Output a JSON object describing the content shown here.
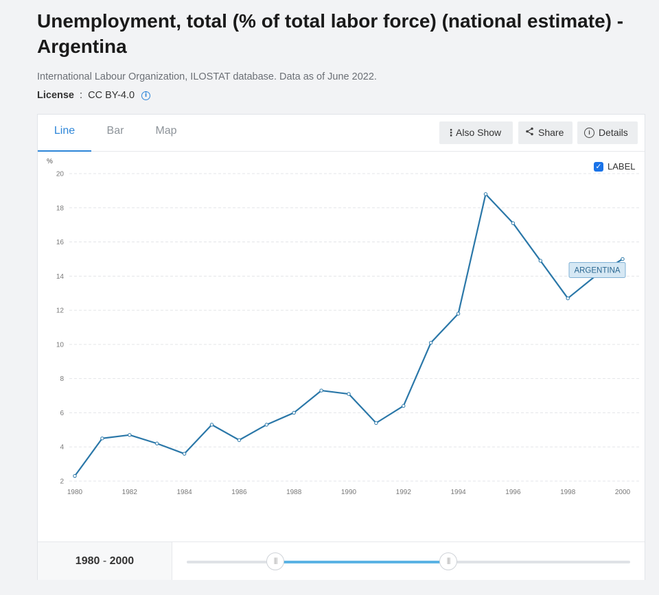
{
  "page": {
    "title": "Unemployment, total (% of total labor force) (national estimate) - Argentina",
    "source": "International Labour Organization, ILOSTAT database. Data as of June 2022.",
    "license_label": "License",
    "license_sep": " : ",
    "license_value": "CC BY-4.0"
  },
  "tabs": [
    {
      "label": "Line",
      "active": true
    },
    {
      "label": "Bar",
      "active": false
    },
    {
      "label": "Map",
      "active": false
    }
  ],
  "toolbar": {
    "also_show": "Also Show",
    "share": "Share",
    "details": "Details"
  },
  "label_toggle": {
    "label": "LABEL",
    "checked": true
  },
  "range": {
    "start": "1980",
    "sep": " - ",
    "end": "2000",
    "slider_start_frac": 0.2,
    "slider_end_frac": 0.59
  },
  "colors": {
    "line": "#2a77a8",
    "accent": "#2c85d8",
    "series_label_bg": "#d6e8f4"
  },
  "chart_data": {
    "type": "line",
    "ylabel": "%",
    "ylim": [
      2,
      20
    ],
    "yticks": [
      2,
      4,
      6,
      8,
      10,
      12,
      14,
      16,
      18,
      20
    ],
    "xticks": [
      1980,
      1982,
      1984,
      1986,
      1988,
      1990,
      1992,
      1994,
      1996,
      1998,
      2000
    ],
    "grid": true,
    "series": [
      {
        "name": "ARGENTINA",
        "x": [
          1980,
          1981,
          1982,
          1983,
          1984,
          1985,
          1986,
          1987,
          1988,
          1989,
          1990,
          1991,
          1992,
          1993,
          1994,
          1995,
          1996,
          1997,
          1998,
          1999,
          2000
        ],
        "values": [
          2.3,
          4.5,
          4.7,
          4.2,
          3.6,
          5.3,
          4.4,
          5.3,
          6.0,
          7.3,
          7.1,
          5.4,
          6.4,
          10.1,
          11.8,
          18.8,
          17.1,
          14.9,
          12.7,
          14.0,
          15.0
        ]
      }
    ]
  }
}
